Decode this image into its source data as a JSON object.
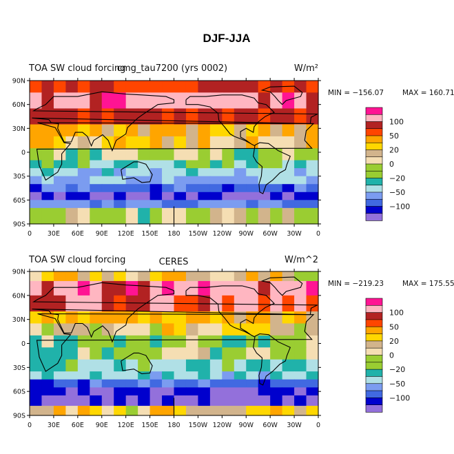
{
  "figure_title": "DJF-JJA",
  "palette": {
    "n160": "#9370db",
    "n140": "#0000cd",
    "n100": "#4169e1",
    "n80": "#7b9cf0",
    "n60": "#b0e0e6",
    "n40": "#20b2aa",
    "n20": "#9acd32",
    "n10": "#9acd32",
    "z0": "#f5deb3",
    "p10": "#d2b48c",
    "p20": "#ffd700",
    "p40": "#ffa500",
    "p60": "#ff4500",
    "p80": "#b22222",
    "p100": "#ffb6c1",
    "p120": "#ff1493",
    "land": "#ffffff",
    "coast": "#000000"
  },
  "chart_data": [
    {
      "type": "heatmap",
      "id": "model",
      "left_title": "TOA SW cloud forcing",
      "center_title": "cmg_tau7200 (yrs 0002)",
      "units": "W/m²",
      "min_label": "MIN = −156.07",
      "max_label": "MAX = 160.71",
      "x_ticks": [
        "0",
        "30E",
        "60E",
        "90E",
        "120E",
        "150E",
        "180",
        "150W",
        "120W",
        "90W",
        "60W",
        "30W",
        "0"
      ],
      "y_ticks": [
        "90N",
        "60N",
        "30N",
        "0",
        "30S",
        "60S",
        "90S"
      ],
      "xlim": [
        0,
        360
      ],
      "ylim": [
        -90,
        90
      ],
      "colorbar_labels": [
        "100",
        "50",
        "20",
        "0",
        "−20",
        "−50",
        "−100"
      ],
      "colorbar_levels": [
        "p120",
        "p100",
        "p80",
        "p60",
        "p40",
        "p20",
        "p10",
        "z0",
        "n10",
        "n20",
        "n40",
        "n60",
        "n80",
        "n100",
        "n140",
        "n160"
      ],
      "lat_bands": [
        {
          "lat": [
            75,
            90
          ],
          "value": 60
        },
        {
          "lat": [
            55,
            75
          ],
          "value": 90
        },
        {
          "lat": [
            35,
            55
          ],
          "value": 60
        },
        {
          "lat": [
            20,
            35
          ],
          "value": 20
        },
        {
          "lat": [
            5,
            20
          ],
          "value": 10
        },
        {
          "lat": [
            -10,
            5
          ],
          "value": -20
        },
        {
          "lat": [
            -20,
            -10
          ],
          "value": -40
        },
        {
          "lat": [
            -30,
            -20
          ],
          "value": -60
        },
        {
          "lat": [
            -40,
            -30
          ],
          "value": -80
        },
        {
          "lat": [
            -50,
            -40
          ],
          "value": -110
        },
        {
          "lat": [
            -60,
            -50
          ],
          "value": -140
        },
        {
          "lat": [
            -70,
            -60
          ],
          "value": -90
        },
        {
          "lat": [
            -90,
            -70
          ],
          "value": -15
        }
      ]
    },
    {
      "type": "heatmap",
      "id": "obs",
      "left_title": "TOA SW cloud forcing",
      "center_title": "CERES",
      "units": "W/m^2",
      "min_label": "MIN = −219.23",
      "max_label": "MAX = 175.55",
      "x_ticks": [
        "0",
        "30E",
        "60E",
        "90E",
        "120E",
        "150E",
        "180",
        "150W",
        "120W",
        "90W",
        "60W",
        "30W",
        "0"
      ],
      "y_ticks": [
        "90N",
        "60N",
        "30N",
        "0",
        "30S",
        "60S",
        "90S"
      ],
      "xlim": [
        0,
        360
      ],
      "ylim": [
        -90,
        90
      ],
      "colorbar_labels": [
        "100",
        "50",
        "20",
        "0",
        "−20",
        "−50",
        "−100"
      ],
      "colorbar_levels": [
        "p120",
        "p100",
        "p80",
        "p60",
        "p40",
        "p20",
        "p10",
        "z0",
        "n10",
        "n20",
        "n40",
        "n60",
        "n80",
        "n100",
        "n140",
        "n160"
      ],
      "lat_bands": [
        {
          "lat": [
            78,
            90
          ],
          "value": 5
        },
        {
          "lat": [
            60,
            78
          ],
          "value": 90
        },
        {
          "lat": [
            40,
            60
          ],
          "value": 70
        },
        {
          "lat": [
            25,
            40
          ],
          "value": 20
        },
        {
          "lat": [
            10,
            25
          ],
          "value": 5
        },
        {
          "lat": [
            -5,
            10
          ],
          "value": -20
        },
        {
          "lat": [
            -20,
            -5
          ],
          "value": -15
        },
        {
          "lat": [
            -35,
            -20
          ],
          "value": -40
        },
        {
          "lat": [
            -45,
            -35
          ],
          "value": -60
        },
        {
          "lat": [
            -55,
            -45
          ],
          "value": -110
        },
        {
          "lat": [
            -65,
            -55
          ],
          "value": -150
        },
        {
          "lat": [
            -78,
            -65
          ],
          "value": -160
        },
        {
          "lat": [
            -90,
            -78
          ],
          "value": 5
        }
      ]
    }
  ]
}
